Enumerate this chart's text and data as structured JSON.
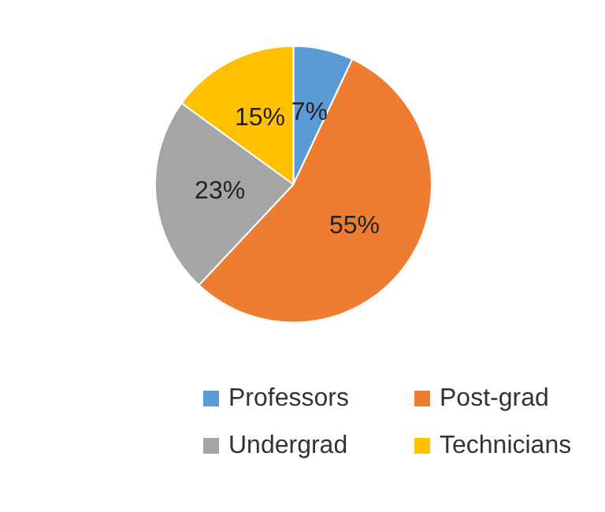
{
  "chart_data": {
    "type": "pie",
    "categories": [
      "Professors",
      "Post-grad",
      "Undergrad",
      "Technicians"
    ],
    "values": [
      7,
      55,
      23,
      15
    ],
    "value_labels": [
      "7%",
      "55%",
      "23%",
      "15%"
    ],
    "colors": [
      "#5b9bd5",
      "#ed7d31",
      "#a5a5a5",
      "#ffc000"
    ],
    "legend": "bottom"
  }
}
